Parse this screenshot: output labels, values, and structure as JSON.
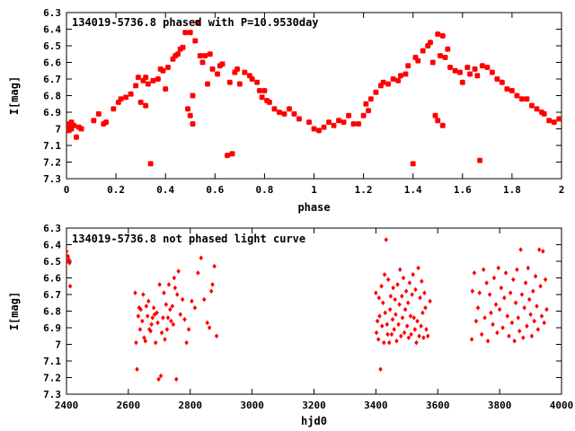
{
  "chart_data": [
    {
      "type": "scatter",
      "title": "134019-5736.8 phased with P=10.9530day",
      "xlabel": "phase",
      "ylabel": "I[mag]",
      "xlim": [
        0,
        2
      ],
      "ylim": [
        7.3,
        6.3
      ],
      "y_inverted": true,
      "xticks": [
        0,
        0.2,
        0.4,
        0.6,
        0.8,
        1,
        1.2,
        1.4,
        1.6,
        1.8,
        2
      ],
      "xtick_labels": [
        "0",
        "0.2",
        "0.4",
        "0.6",
        "0.8",
        "1",
        "1.2",
        "1.4",
        "1.6",
        "1.8",
        "2"
      ],
      "yticks": [
        6.3,
        6.4,
        6.5,
        6.6,
        6.7,
        6.8,
        6.9,
        7,
        7.1,
        7.2,
        7.3
      ],
      "ytick_labels": [
        "6.3",
        "6.4",
        "6.5",
        "6.6",
        "6.7",
        "6.8",
        "6.9",
        "7",
        "7.1",
        "7.2",
        "7.3"
      ],
      "grid": false,
      "marker_color": "#ff0000",
      "marker": "cross",
      "points": [
        [
          0.0,
          6.97
        ],
        [
          0.01,
          6.99
        ],
        [
          0.01,
          7.01
        ],
        [
          0.02,
          6.96
        ],
        [
          0.02,
          7.0
        ],
        [
          0.03,
          6.98
        ],
        [
          0.04,
          7.05
        ],
        [
          0.05,
          6.99
        ],
        [
          0.06,
          7.0
        ],
        [
          0.11,
          6.95
        ],
        [
          0.13,
          6.91
        ],
        [
          0.15,
          6.97
        ],
        [
          0.16,
          6.96
        ],
        [
          0.19,
          6.88
        ],
        [
          0.21,
          6.84
        ],
        [
          0.22,
          6.82
        ],
        [
          0.24,
          6.81
        ],
        [
          0.26,
          6.79
        ],
        [
          0.28,
          6.74
        ],
        [
          0.29,
          6.69
        ],
        [
          0.3,
          6.84
        ],
        [
          0.31,
          6.71
        ],
        [
          0.32,
          6.69
        ],
        [
          0.32,
          6.86
        ],
        [
          0.33,
          6.73
        ],
        [
          0.34,
          7.21
        ],
        [
          0.35,
          6.71
        ],
        [
          0.37,
          6.7
        ],
        [
          0.38,
          6.64
        ],
        [
          0.39,
          6.65
        ],
        [
          0.4,
          6.76
        ],
        [
          0.41,
          6.63
        ],
        [
          0.43,
          6.58
        ],
        [
          0.44,
          6.56
        ],
        [
          0.45,
          6.55
        ],
        [
          0.46,
          6.52
        ],
        [
          0.47,
          6.51
        ],
        [
          0.48,
          6.42
        ],
        [
          0.49,
          6.88
        ],
        [
          0.5,
          6.92
        ],
        [
          0.5,
          6.42
        ],
        [
          0.51,
          6.97
        ],
        [
          0.51,
          6.8
        ],
        [
          0.52,
          6.47
        ],
        [
          0.53,
          6.36
        ],
        [
          0.54,
          6.56
        ],
        [
          0.55,
          6.6
        ],
        [
          0.56,
          6.56
        ],
        [
          0.57,
          6.73
        ],
        [
          0.58,
          6.55
        ],
        [
          0.59,
          6.64
        ],
        [
          0.61,
          6.67
        ],
        [
          0.62,
          6.62
        ],
        [
          0.63,
          6.61
        ],
        [
          0.65,
          7.16
        ],
        [
          0.66,
          6.72
        ],
        [
          0.67,
          7.15
        ],
        [
          0.68,
          6.66
        ],
        [
          0.69,
          6.64
        ],
        [
          0.7,
          6.73
        ],
        [
          0.72,
          6.66
        ],
        [
          0.74,
          6.68
        ],
        [
          0.75,
          6.7
        ],
        [
          0.77,
          6.72
        ],
        [
          0.78,
          6.77
        ],
        [
          0.79,
          6.81
        ],
        [
          0.8,
          6.77
        ],
        [
          0.81,
          6.83
        ],
        [
          0.82,
          6.84
        ],
        [
          0.84,
          6.88
        ],
        [
          0.86,
          6.9
        ],
        [
          0.88,
          6.91
        ],
        [
          0.9,
          6.88
        ],
        [
          0.92,
          6.91
        ],
        [
          0.94,
          6.94
        ],
        [
          0.98,
          6.96
        ],
        [
          1.0,
          7.0
        ],
        [
          1.02,
          7.01
        ],
        [
          1.04,
          6.99
        ],
        [
          1.06,
          6.96
        ],
        [
          1.08,
          6.98
        ],
        [
          1.1,
          6.95
        ],
        [
          1.12,
          6.96
        ],
        [
          1.14,
          6.92
        ],
        [
          1.16,
          6.97
        ],
        [
          1.18,
          6.97
        ],
        [
          1.2,
          6.92
        ],
        [
          1.21,
          6.85
        ],
        [
          1.22,
          6.89
        ],
        [
          1.23,
          6.82
        ],
        [
          1.25,
          6.78
        ],
        [
          1.27,
          6.74
        ],
        [
          1.28,
          6.72
        ],
        [
          1.3,
          6.73
        ],
        [
          1.32,
          6.7
        ],
        [
          1.34,
          6.71
        ],
        [
          1.35,
          6.68
        ],
        [
          1.37,
          6.67
        ],
        [
          1.38,
          6.62
        ],
        [
          1.4,
          7.21
        ],
        [
          1.41,
          6.57
        ],
        [
          1.42,
          6.59
        ],
        [
          1.44,
          6.53
        ],
        [
          1.46,
          6.5
        ],
        [
          1.47,
          6.48
        ],
        [
          1.48,
          6.6
        ],
        [
          1.49,
          6.92
        ],
        [
          1.5,
          6.43
        ],
        [
          1.5,
          6.95
        ],
        [
          1.51,
          6.56
        ],
        [
          1.52,
          6.44
        ],
        [
          1.52,
          6.98
        ],
        [
          1.53,
          6.57
        ],
        [
          1.54,
          6.52
        ],
        [
          1.55,
          6.63
        ],
        [
          1.57,
          6.65
        ],
        [
          1.59,
          6.66
        ],
        [
          1.6,
          6.72
        ],
        [
          1.62,
          6.63
        ],
        [
          1.63,
          6.67
        ],
        [
          1.65,
          6.64
        ],
        [
          1.66,
          6.68
        ],
        [
          1.67,
          7.19
        ],
        [
          1.68,
          6.62
        ],
        [
          1.7,
          6.63
        ],
        [
          1.72,
          6.66
        ],
        [
          1.74,
          6.7
        ],
        [
          1.76,
          6.72
        ],
        [
          1.78,
          6.76
        ],
        [
          1.8,
          6.77
        ],
        [
          1.82,
          6.8
        ],
        [
          1.84,
          6.82
        ],
        [
          1.86,
          6.82
        ],
        [
          1.88,
          6.86
        ],
        [
          1.9,
          6.88
        ],
        [
          1.92,
          6.9
        ],
        [
          1.93,
          6.91
        ],
        [
          1.95,
          6.95
        ],
        [
          1.97,
          6.96
        ],
        [
          1.99,
          6.94
        ]
      ]
    },
    {
      "type": "scatter",
      "title": "134019-5736.8 not phased light curve",
      "xlabel": "hjd0",
      "ylabel": "I[mag]",
      "xlim": [
        2400,
        4000
      ],
      "ylim": [
        7.3,
        6.3
      ],
      "y_inverted": true,
      "xticks": [
        2400,
        2600,
        2800,
        3000,
        3200,
        3400,
        3600,
        3800,
        4000
      ],
      "xtick_labels": [
        "2400",
        "2600",
        "2800",
        "3000",
        "3200",
        "3400",
        "3600",
        "3800",
        "4000"
      ],
      "yticks": [
        6.3,
        6.4,
        6.5,
        6.6,
        6.7,
        6.8,
        6.9,
        7,
        7.1,
        7.2,
        7.3
      ],
      "ytick_labels": [
        "6.3",
        "6.4",
        "6.5",
        "6.6",
        "6.7",
        "6.8",
        "6.9",
        "7",
        "7.1",
        "7.2",
        "7.3"
      ],
      "grid": false,
      "marker_color": "#ff0000",
      "marker": "diamond",
      "points": [
        [
          2400,
          6.44
        ],
        [
          2402,
          6.5
        ],
        [
          2405,
          6.47
        ],
        [
          2408,
          6.49
        ],
        [
          2410,
          6.51
        ],
        [
          2412,
          6.65
        ],
        [
          2622,
          6.69
        ],
        [
          2625,
          6.99
        ],
        [
          2628,
          7.15
        ],
        [
          2632,
          6.83
        ],
        [
          2635,
          6.78
        ],
        [
          2638,
          6.91
        ],
        [
          2640,
          6.79
        ],
        [
          2645,
          6.86
        ],
        [
          2648,
          6.7
        ],
        [
          2651,
          6.96
        ],
        [
          2655,
          6.98
        ],
        [
          2658,
          6.77
        ],
        [
          2662,
          6.83
        ],
        [
          2665,
          6.74
        ],
        [
          2668,
          6.91
        ],
        [
          2672,
          6.92
        ],
        [
          2675,
          6.88
        ],
        [
          2678,
          6.84
        ],
        [
          2682,
          6.78
        ],
        [
          2685,
          6.82
        ],
        [
          2688,
          6.99
        ],
        [
          2692,
          6.81
        ],
        [
          2695,
          6.87
        ],
        [
          2698,
          7.21
        ],
        [
          2701,
          6.64
        ],
        [
          2705,
          7.19
        ],
        [
          2708,
          6.93
        ],
        [
          2712,
          6.84
        ],
        [
          2715,
          6.69
        ],
        [
          2718,
          6.97
        ],
        [
          2722,
          6.76
        ],
        [
          2725,
          6.91
        ],
        [
          2728,
          6.84
        ],
        [
          2731,
          6.64
        ],
        [
          2735,
          6.79
        ],
        [
          2738,
          6.86
        ],
        [
          2742,
          6.77
        ],
        [
          2745,
          6.88
        ],
        [
          2748,
          6.6
        ],
        [
          2751,
          6.66
        ],
        [
          2755,
          7.21
        ],
        [
          2758,
          6.7
        ],
        [
          2762,
          6.56
        ],
        [
          2768,
          6.82
        ],
        [
          2775,
          6.73
        ],
        [
          2782,
          6.85
        ],
        [
          2788,
          6.99
        ],
        [
          2795,
          6.91
        ],
        [
          2805,
          6.74
        ],
        [
          2815,
          6.78
        ],
        [
          2825,
          6.57
        ],
        [
          2835,
          6.48
        ],
        [
          2845,
          6.73
        ],
        [
          2855,
          6.87
        ],
        [
          2862,
          6.9
        ],
        [
          2868,
          6.68
        ],
        [
          2872,
          6.64
        ],
        [
          2878,
          6.53
        ],
        [
          2885,
          6.95
        ],
        [
          3400,
          6.69
        ],
        [
          3402,
          6.93
        ],
        [
          3405,
          6.86
        ],
        [
          3408,
          6.97
        ],
        [
          3410,
          6.72
        ],
        [
          3412,
          6.83
        ],
        [
          3415,
          7.15
        ],
        [
          3418,
          6.65
        ],
        [
          3420,
          6.89
        ],
        [
          3423,
          6.75
        ],
        [
          3426,
          6.99
        ],
        [
          3428,
          6.58
        ],
        [
          3430,
          6.81
        ],
        [
          3433,
          6.37
        ],
        [
          3436,
          6.88
        ],
        [
          3438,
          6.94
        ],
        [
          3440,
          6.61
        ],
        [
          3443,
          6.99
        ],
        [
          3446,
          6.79
        ],
        [
          3448,
          6.71
        ],
        [
          3451,
          6.94
        ],
        [
          3454,
          6.85
        ],
        [
          3456,
          6.66
        ],
        [
          3459,
          6.91
        ],
        [
          3462,
          6.73
        ],
        [
          3464,
          6.82
        ],
        [
          3467,
          6.98
        ],
        [
          3470,
          6.64
        ],
        [
          3473,
          6.88
        ],
        [
          3476,
          6.76
        ],
        [
          3478,
          6.55
        ],
        [
          3481,
          6.95
        ],
        [
          3484,
          6.71
        ],
        [
          3486,
          6.84
        ],
        [
          3489,
          6.6
        ],
        [
          3492,
          6.93
        ],
        [
          3495,
          6.79
        ],
        [
          3498,
          6.68
        ],
        [
          3501,
          6.89
        ],
        [
          3504,
          6.75
        ],
        [
          3506,
          6.96
        ],
        [
          3509,
          6.63
        ],
        [
          3512,
          6.83
        ],
        [
          3514,
          6.94
        ],
        [
          3517,
          6.7
        ],
        [
          3520,
          6.58
        ],
        [
          3523,
          6.84
        ],
        [
          3526,
          6.91
        ],
        [
          3528,
          6.67
        ],
        [
          3531,
          6.99
        ],
        [
          3534,
          6.86
        ],
        [
          3537,
          6.54
        ],
        [
          3540,
          6.95
        ],
        [
          3543,
          6.72
        ],
        [
          3546,
          6.89
        ],
        [
          3548,
          6.62
        ],
        [
          3551,
          6.81
        ],
        [
          3554,
          6.96
        ],
        [
          3557,
          6.69
        ],
        [
          3560,
          6.78
        ],
        [
          3563,
          6.91
        ],
        [
          3568,
          6.95
        ],
        [
          3575,
          6.74
        ],
        [
          3710,
          6.97
        ],
        [
          3712,
          6.68
        ],
        [
          3718,
          6.57
        ],
        [
          3724,
          6.86
        ],
        [
          3730,
          6.78
        ],
        [
          3735,
          6.69
        ],
        [
          3742,
          6.94
        ],
        [
          3748,
          6.55
        ],
        [
          3752,
          6.84
        ],
        [
          3758,
          6.63
        ],
        [
          3762,
          6.98
        ],
        [
          3768,
          6.7
        ],
        [
          3772,
          6.81
        ],
        [
          3778,
          6.88
        ],
        [
          3782,
          6.6
        ],
        [
          3788,
          6.76
        ],
        [
          3792,
          6.93
        ],
        [
          3796,
          6.54
        ],
        [
          3800,
          6.79
        ],
        [
          3805,
          6.66
        ],
        [
          3810,
          6.9
        ],
        [
          3815,
          6.72
        ],
        [
          3820,
          6.57
        ],
        [
          3825,
          6.83
        ],
        [
          3830,
          6.95
        ],
        [
          3835,
          6.69
        ],
        [
          3840,
          6.87
        ],
        [
          3844,
          6.61
        ],
        [
          3848,
          6.98
        ],
        [
          3852,
          6.75
        ],
        [
          3856,
          6.55
        ],
        [
          3860,
          6.84
        ],
        [
          3864,
          6.92
        ],
        [
          3868,
          6.43
        ],
        [
          3872,
          6.7
        ],
        [
          3876,
          6.96
        ],
        [
          3880,
          6.78
        ],
        [
          3884,
          6.63
        ],
        [
          3888,
          6.89
        ],
        [
          3892,
          6.54
        ],
        [
          3896,
          6.73
        ],
        [
          3900,
          6.82
        ],
        [
          3904,
          6.95
        ],
        [
          3908,
          6.68
        ],
        [
          3912,
          6.86
        ],
        [
          3916,
          6.59
        ],
        [
          3920,
          6.77
        ],
        [
          3924,
          6.91
        ],
        [
          3928,
          6.43
        ],
        [
          3932,
          6.65
        ],
        [
          3936,
          6.83
        ],
        [
          3940,
          6.44
        ],
        [
          3944,
          6.87
        ],
        [
          3948,
          6.61
        ],
        [
          3952,
          6.79
        ]
      ]
    }
  ]
}
